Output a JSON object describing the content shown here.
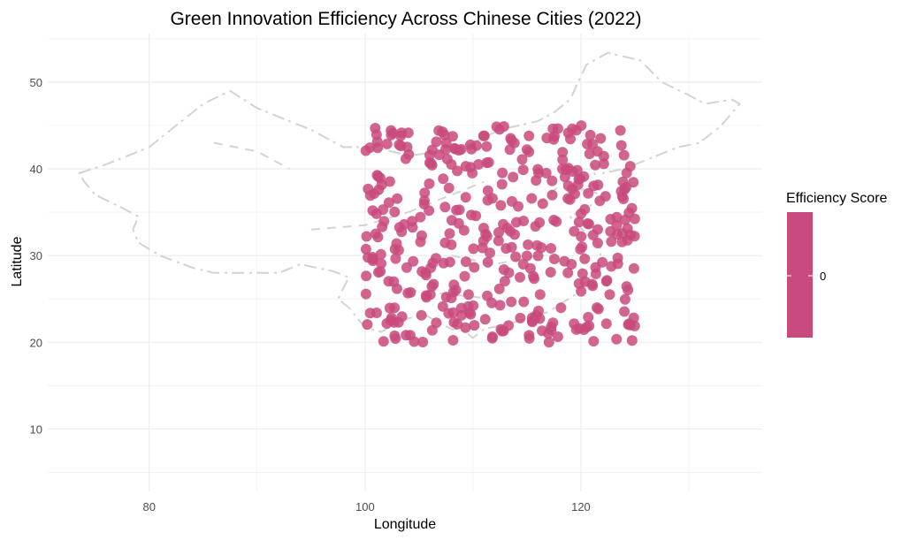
{
  "chart_data": {
    "type": "scatter",
    "title": "Green Innovation Efficiency Across Chinese Cities (2022)",
    "xlabel": "Longitude",
    "ylabel": "Latitude",
    "xlim": [
      70.6,
      136.8
    ],
    "ylim": [
      2.8,
      55.6
    ],
    "x_ticks": [
      80,
      100,
      120
    ],
    "y_ticks": [
      10,
      20,
      30,
      40,
      50
    ],
    "grid": true,
    "colors": {
      "points": "#c94a7c",
      "basemap": "#d3d3d3",
      "grid": "#ebebeb",
      "tick_text": "#4d4d4d"
    },
    "legend": {
      "title": "Efficiency Score",
      "labels": [
        "0"
      ],
      "position": "right"
    },
    "points": {
      "description_of_extent": "Points spread roughly uniformly over the rectangle lon 100–125, lat 20–45",
      "x_range": [
        100,
        125
      ],
      "y_range": [
        20,
        45
      ],
      "count": 400,
      "value": 0
    },
    "basemap_outline": [
      [
        73.5,
        39.5
      ],
      [
        76,
        40.5
      ],
      [
        80,
        42.5
      ],
      [
        82.5,
        45
      ],
      [
        85,
        47.5
      ],
      [
        87.5,
        49
      ],
      [
        90,
        47
      ],
      [
        92,
        46
      ],
      [
        95,
        44.5
      ],
      [
        98,
        42.5
      ],
      [
        101,
        42.5
      ],
      [
        104,
        41.5
      ],
      [
        107,
        42
      ],
      [
        110,
        43
      ],
      [
        112.5,
        44.5
      ],
      [
        116,
        45.5
      ],
      [
        117.5,
        46.5
      ],
      [
        119,
        48
      ],
      [
        120.5,
        52
      ],
      [
        122.5,
        53.4
      ],
      [
        125.5,
        52.5
      ],
      [
        127.5,
        50
      ],
      [
        130,
        48.5
      ],
      [
        131.5,
        47.5
      ],
      [
        134,
        48
      ],
      [
        134.7,
        47.5
      ],
      [
        133,
        45
      ],
      [
        131,
        43
      ],
      [
        129,
        42.5
      ],
      [
        126,
        41
      ],
      [
        124,
        40
      ],
      [
        122,
        39.5
      ],
      [
        121,
        40.5
      ],
      [
        121.5,
        38.5
      ],
      [
        120,
        37.5
      ],
      [
        122.5,
        37
      ],
      [
        120.5,
        35.5
      ],
      [
        119,
        34.5
      ],
      [
        120.5,
        32.5
      ],
      [
        121.8,
        31
      ],
      [
        121.8,
        30
      ],
      [
        121.5,
        28.5
      ],
      [
        120.5,
        27
      ],
      [
        119.5,
        25.5
      ],
      [
        118.2,
        24.5
      ],
      [
        117,
        23.5
      ],
      [
        115,
        22.7
      ],
      [
        113.5,
        22.2
      ],
      [
        111,
        21.5
      ],
      [
        110,
        20.5
      ],
      [
        109,
        21.5
      ],
      [
        108,
        21.5
      ],
      [
        106.5,
        22.5
      ],
      [
        105.5,
        23.2
      ],
      [
        103.5,
        22.6
      ],
      [
        101.5,
        21.2
      ],
      [
        100,
        21.7
      ],
      [
        98.5,
        24
      ],
      [
        97.5,
        25
      ],
      [
        98.5,
        27.5
      ],
      [
        97,
        28.2
      ],
      [
        94,
        29
      ],
      [
        92,
        28
      ],
      [
        89,
        28
      ],
      [
        86,
        28
      ],
      [
        84,
        28.6
      ],
      [
        81,
        30
      ],
      [
        79,
        31.5
      ],
      [
        78.5,
        33
      ],
      [
        79,
        34.5
      ],
      [
        77.5,
        35.5
      ],
      [
        75,
        37
      ],
      [
        74,
        38.5
      ],
      [
        73.5,
        39.5
      ]
    ]
  }
}
